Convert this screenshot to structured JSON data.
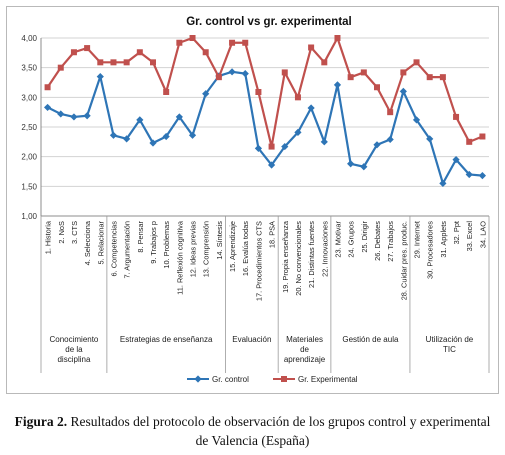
{
  "chart_data": {
    "type": "line",
    "title": "Gr. control vs gr. experimental",
    "ylim": [
      1.0,
      4.0
    ],
    "yticks": [
      "1,00",
      "1,50",
      "2,00",
      "2,50",
      "3,00",
      "3,50",
      "4,00"
    ],
    "grid": true,
    "legend_position": "bottom",
    "categories": [
      "1. Historia",
      "2. NoS",
      "3. CTS",
      "4. Selecciona",
      "5. Relacionar",
      "6. Competencias",
      "7. Argumentación",
      "8. Pensar",
      "9. Trabajos p",
      "10. Problemas",
      "11. Reflexión cognitiva",
      "12. Ideas previas",
      "13. Comprensión",
      "14. Síntesis",
      "15. Aprendizaje",
      "16. Evalúa todas",
      "17. Procedimientos CTS",
      "18. PSA",
      "19. Propia enseñanza",
      "20. No convencionales",
      "21. Distintas fuentes",
      "22. Innovaciones",
      "23. Motivar",
      "24. Grupos",
      "25. Dirigir",
      "26. Debates",
      "27. Trabajos",
      "28. Cuidar pres. produc.",
      "29. Internet",
      "30. Procesadores",
      "31. Applets",
      "32. Ppt",
      "33. Excel",
      "34. LAO"
    ],
    "groups": [
      {
        "label": "Conocimiento de la disciplina",
        "start": 0,
        "end": 4
      },
      {
        "label": "Estrategias de enseñanza",
        "start": 5,
        "end": 13
      },
      {
        "label": "Evaluación",
        "start": 14,
        "end": 17
      },
      {
        "label": "Materiales de aprendizaje",
        "start": 18,
        "end": 21
      },
      {
        "label": "Gestión de aula",
        "start": 22,
        "end": 27
      },
      {
        "label": "Utilización de TIC",
        "start": 28,
        "end": 33
      }
    ],
    "series": [
      {
        "name": "Gr. control",
        "color": "#2e75b6",
        "marker": "diamond",
        "values": [
          2.83,
          2.72,
          2.67,
          2.69,
          3.35,
          2.36,
          2.3,
          2.62,
          2.23,
          2.34,
          2.67,
          2.36,
          3.06,
          3.36,
          3.43,
          3.4,
          2.14,
          1.86,
          2.17,
          2.41,
          2.82,
          2.25,
          3.21,
          1.88,
          1.83,
          2.2,
          2.29,
          3.1,
          2.62,
          2.3,
          1.55,
          1.95,
          1.7,
          1.68
        ]
      },
      {
        "name": "Gr. Experimental",
        "color": "#c0504d",
        "marker": "square",
        "values": [
          3.17,
          3.5,
          3.76,
          3.83,
          3.59,
          3.59,
          3.59,
          3.76,
          3.59,
          3.09,
          3.92,
          4.0,
          3.76,
          3.34,
          3.92,
          3.92,
          3.09,
          2.17,
          3.42,
          3.0,
          3.84,
          3.59,
          4.0,
          3.34,
          3.42,
          3.17,
          2.75,
          3.42,
          3.59,
          3.34,
          3.34,
          2.67,
          2.25,
          2.34
        ]
      }
    ]
  },
  "caption": {
    "label": "Figura 2.",
    "text": " Resultados del protocolo de observación de los grupos control y experimental de Valencia (España)"
  }
}
